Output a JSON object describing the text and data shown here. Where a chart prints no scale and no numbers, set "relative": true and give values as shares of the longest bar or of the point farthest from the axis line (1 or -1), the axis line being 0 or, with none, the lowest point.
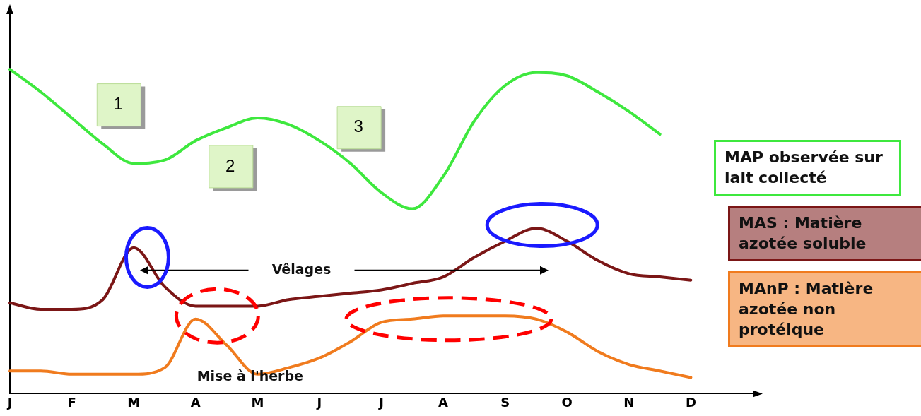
{
  "chart_data": {
    "type": "line",
    "relative": true,
    "categories": [
      "J",
      null,
      "F",
      null,
      "M",
      null,
      "A",
      null,
      "M",
      null,
      "J",
      null,
      "J",
      null,
      "A",
      null,
      "S",
      null,
      "O",
      null,
      "N",
      null,
      "D",
      null,
      null
    ],
    "series": [
      {
        "name": "MAP observée sur lait collecté",
        "color": "#3ee83e",
        "values": [
          1.0,
          0.93,
          0.85,
          0.77,
          0.71,
          0.72,
          0.78,
          0.82,
          0.85,
          0.83,
          0.78,
          0.71,
          0.62,
          0.57,
          0.67,
          0.84,
          0.95,
          0.99,
          0.98,
          0.93,
          0.87,
          0.8,
          null,
          null,
          null
        ]
      },
      {
        "name": "MAS : Matière azotée soluble",
        "color": "#7b1616",
        "values": [
          0.28,
          0.26,
          0.26,
          0.29,
          0.45,
          0.33,
          0.27,
          0.27,
          0.27,
          0.29,
          0.3,
          0.31,
          0.32,
          0.34,
          0.36,
          0.42,
          0.47,
          0.51,
          0.47,
          0.41,
          0.37,
          0.36,
          0.35,
          null,
          null
        ]
      },
      {
        "name": "MAnP : Matière azotée non protéique",
        "color": "#f07b1e",
        "values": [
          0.07,
          0.07,
          0.06,
          0.06,
          0.06,
          0.08,
          0.23,
          0.15,
          0.06,
          0.08,
          0.11,
          0.16,
          0.22,
          0.23,
          0.24,
          0.24,
          0.24,
          0.23,
          0.19,
          0.13,
          0.09,
          0.07,
          0.05,
          null,
          null
        ]
      }
    ],
    "annotations": [
      "1",
      "2",
      "3",
      "Vêlages",
      "Mise à l'herbe"
    ],
    "grid": false,
    "legend": "right",
    "marker": "none",
    "line_style": "solid"
  }
}
